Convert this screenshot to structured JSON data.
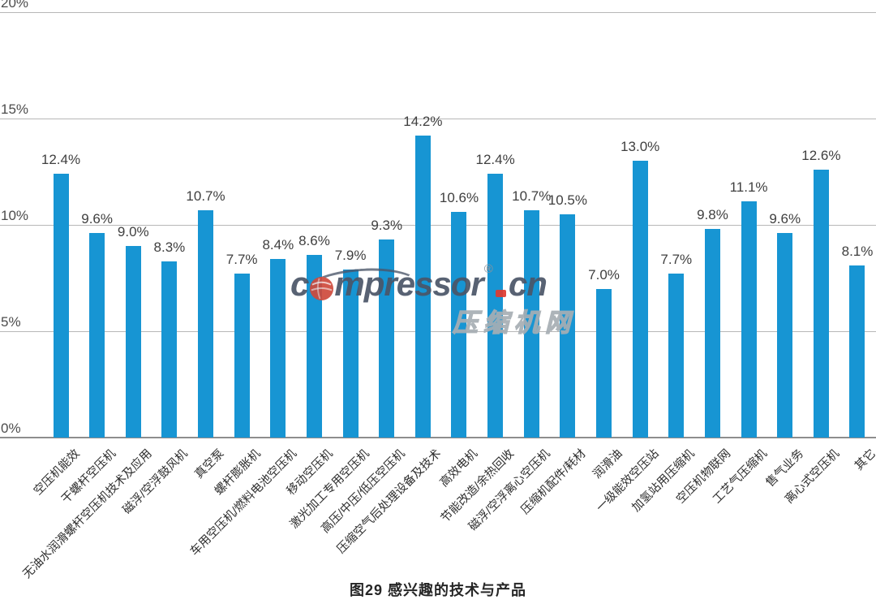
{
  "chart_data": {
    "type": "bar",
    "title": "图29 感兴趣的技术与产品",
    "categories": [
      "空压机能效",
      "干螺杆空压机",
      "无油水润滑螺杆空压机技术及应用",
      "磁浮/空浮鼓风机",
      "真空泵",
      "螺杆膨胀机",
      "车用空压机/燃料电池空压机",
      "移动空压机",
      "激光加工专用空压机",
      "高压/中压/低压空压机",
      "压缩空气后处理设备及技术",
      "高效电机",
      "节能改造/余热回收",
      "磁浮/空浮离心空压机",
      "压缩机配件/耗材",
      "润滑油",
      "一级能效空压站",
      "加氢站用压缩机",
      "空压机物联网",
      "工艺气压缩机",
      "售气业务",
      "离心式空压机",
      "其它"
    ],
    "values": [
      12.4,
      9.6,
      9.0,
      8.3,
      10.7,
      7.7,
      8.4,
      8.6,
      7.9,
      9.3,
      14.2,
      10.6,
      12.4,
      10.7,
      10.5,
      7.0,
      13.0,
      7.7,
      9.8,
      11.1,
      9.6,
      12.6,
      8.1
    ],
    "value_labels": [
      "12.4%",
      "9.6%",
      "9.0%",
      "8.3%",
      "10.7%",
      "7.7%",
      "8.4%",
      "8.6%",
      "7.9%",
      "9.3%",
      "14.2%",
      "10.6%",
      "12.4%",
      "10.7%",
      "10.5%",
      "7.0%",
      "13.0%",
      "7.7%",
      "9.8%",
      "11.1%",
      "9.6%",
      "12.6%",
      "8.1%"
    ],
    "xlabel": "",
    "ylabel": "",
    "ylim": [
      0,
      20
    ],
    "y_axis": {
      "tick_values": [
        20,
        15,
        10,
        5,
        0
      ],
      "tick_labels": [
        "20%",
        "15%",
        "10%",
        "5%",
        "0%"
      ]
    },
    "grid": true,
    "legend": "none",
    "bar_color": "#1795d3"
  },
  "watermark": {
    "logo_prefix": "c",
    "logo_mid": "mpressor",
    "reg_mark": "®",
    "logo_tld": "cn",
    "cjk_name": "压缩机网",
    "brand_gray": "#4a5568",
    "brand_red": "#e03a2f"
  }
}
